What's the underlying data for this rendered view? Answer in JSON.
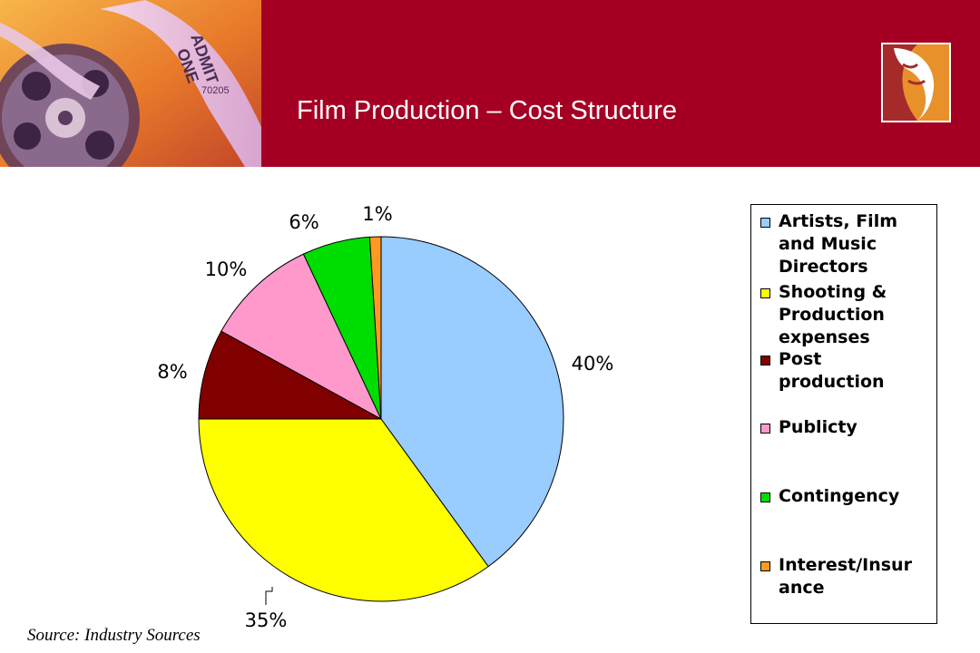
{
  "title": "Film Production – Cost Structure",
  "source": "Source: Industry Sources",
  "colors": {
    "header": "#a50024",
    "logo_orange": "#e8902a",
    "logo_red": "#a52a2a"
  },
  "banner": {
    "ticket_text_1": "ADMIT",
    "ticket_text_2": "ONE",
    "ticket_number": "70205"
  },
  "chart_data": {
    "type": "pie",
    "title": "",
    "slices": [
      {
        "name": "Artists, Film and Music Directors",
        "value": 40,
        "label": "40%",
        "color": "#99ccff"
      },
      {
        "name": "Shooting & Production expenses",
        "value": 35,
        "label": "35%",
        "color": "#ffff00"
      },
      {
        "name": "Post production",
        "value": 8,
        "label": "8%",
        "color": "#800000"
      },
      {
        "name": "Publicty",
        "value": 10,
        "label": "10%",
        "color": "#ff99cc"
      },
      {
        "name": "Contingency",
        "value": 6,
        "label": "6%",
        "color": "#00dd00"
      },
      {
        "name": "Interest/Insurance",
        "value": 1,
        "label": "1%",
        "color": "#ff9922"
      }
    ],
    "legend_placement": "right"
  },
  "legend": [
    {
      "lines": [
        "Artists, Film",
        "and Music",
        "Directors"
      ],
      "color": "#99ccff"
    },
    {
      "lines": [
        "Shooting &",
        "Production",
        "expenses"
      ],
      "color": "#ffff00"
    },
    {
      "lines": [
        "Post",
        "production"
      ],
      "color": "#800000"
    },
    {
      "lines": [
        "Publicty"
      ],
      "color": "#ff99cc"
    },
    {
      "lines": [
        "Contingency"
      ],
      "color": "#00dd00"
    },
    {
      "lines": [
        "Interest/Insur",
        "ance"
      ],
      "color": "#ff9922"
    }
  ]
}
